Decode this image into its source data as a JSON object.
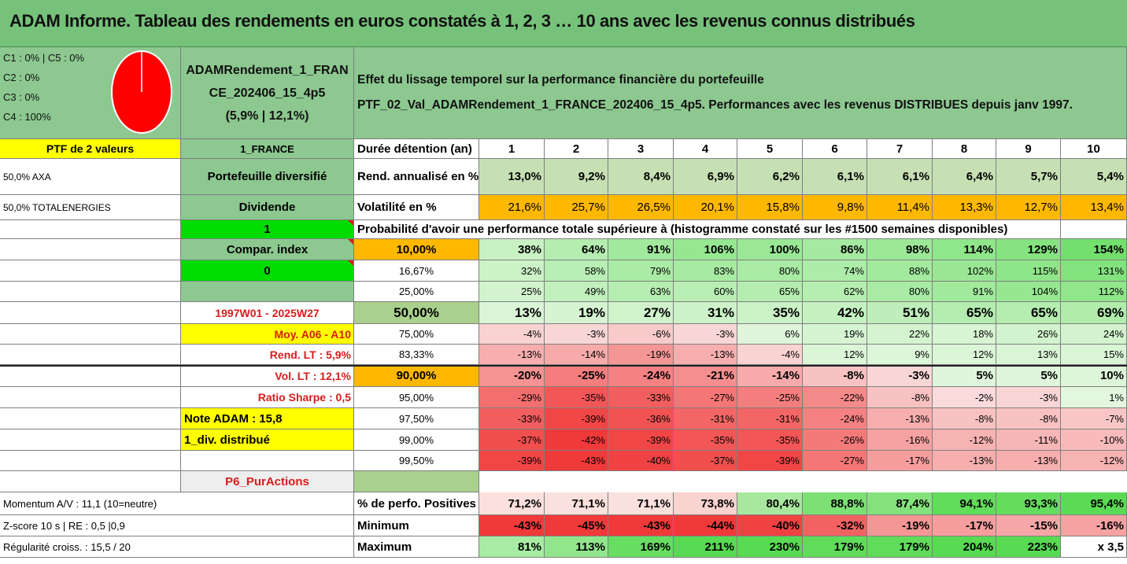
{
  "title": "ADAM Informe. Tableau des rendements en euros constatés à 1, 2, 3 … 10 ans avec les revenus connus distribués",
  "info_box": {
    "lines": [
      "C1 : 0% | C5 : 0%",
      "C2 : 0%",
      "C3 : 0%",
      "C4 : 100%"
    ],
    "pie": {
      "segments": [
        {
          "label": "C4",
          "value": 100,
          "color": "#ff0000"
        }
      ]
    }
  },
  "fund_name": {
    "line1": "ADAMRendement_1_FRAN",
    "line2": "CE_202406_15_4p5",
    "line3": "(5,9% | 12,1%)"
  },
  "description": {
    "line1": "Effet du lissage temporel sur la performance financière du portefeuille",
    "line2": "PTF_02_Val_ADAMRendement_1_FRANCE_202406_15_4p5. Performances avec les revenus DISTRIBUES depuis janv 1997."
  },
  "left": {
    "ptf_label": "PTF de 2 valeurs",
    "holding1": "50,0% AXA",
    "holding2": "50,0% TOTALENERGIES"
  },
  "mid": {
    "r0": "1_FRANCE",
    "r1": "Portefeuille diversifié",
    "r2": "Dividende",
    "r3": "1",
    "r4": "Compar. index",
    "r5": "0",
    "r6": "",
    "r7": "1997W01 - 2025W27",
    "r8": "Moy. A06 - A10",
    "r9": "Rend. LT : 5,9%",
    "r10": "Vol. LT : 12,1%",
    "r11": "Ratio Sharpe : 0,5",
    "r12": "Note ADAM : 15,8",
    "r13": "1_div. distribué",
    "r15": "P6_PurActions"
  },
  "bottom_left": {
    "momentum": "Momentum A/V : 11,1 (10=neutre)",
    "zscore": "Z-score 10 s | RE : 0,5 |0,9",
    "regularite": "Régularité croiss. : 15,5 / 20"
  },
  "durations": {
    "label": "Durée détention (an)",
    "values": [
      "1",
      "2",
      "3",
      "4",
      "5",
      "6",
      "7",
      "8",
      "9",
      "10"
    ]
  },
  "rend": {
    "label": "Rend. annualisé en %",
    "values": [
      "13,0%",
      "9,2%",
      "8,4%",
      "6,9%",
      "6,2%",
      "6,1%",
      "6,1%",
      "6,4%",
      "5,7%",
      "5,4%"
    ]
  },
  "vol": {
    "label": "Volatilité en %",
    "values": [
      "21,6%",
      "25,7%",
      "26,5%",
      "20,1%",
      "15,8%",
      "9,8%",
      "11,4%",
      "13,3%",
      "12,7%",
      "13,4%"
    ]
  },
  "prob_header": "Probabilité d'avoir une performance totale supérieure à (histogramme constaté sur les #1500 semaines disponibles)",
  "quantiles": [
    {
      "p": "10,00%",
      "values": [
        "38%",
        "64%",
        "91%",
        "106%",
        "100%",
        "86%",
        "98%",
        "114%",
        "129%",
        "154%"
      ]
    },
    {
      "p": "16,67%",
      "values": [
        "32%",
        "58%",
        "79%",
        "83%",
        "80%",
        "74%",
        "88%",
        "102%",
        "115%",
        "131%"
      ]
    },
    {
      "p": "25,00%",
      "values": [
        "25%",
        "49%",
        "63%",
        "60%",
        "65%",
        "62%",
        "80%",
        "91%",
        "104%",
        "112%"
      ]
    },
    {
      "p": "50,00%",
      "values": [
        "13%",
        "19%",
        "27%",
        "31%",
        "35%",
        "42%",
        "51%",
        "65%",
        "65%",
        "69%"
      ]
    },
    {
      "p": "75,00%",
      "values": [
        "-4%",
        "-3%",
        "-6%",
        "-3%",
        "6%",
        "19%",
        "22%",
        "18%",
        "26%",
        "24%"
      ]
    },
    {
      "p": "83,33%",
      "values": [
        "-13%",
        "-14%",
        "-19%",
        "-13%",
        "-4%",
        "12%",
        "9%",
        "12%",
        "13%",
        "15%"
      ]
    },
    {
      "p": "90,00%",
      "values": [
        "-20%",
        "-25%",
        "-24%",
        "-21%",
        "-14%",
        "-8%",
        "-3%",
        "5%",
        "5%",
        "10%"
      ]
    },
    {
      "p": "95,00%",
      "values": [
        "-29%",
        "-35%",
        "-33%",
        "-27%",
        "-25%",
        "-22%",
        "-8%",
        "-2%",
        "-3%",
        "1%"
      ]
    },
    {
      "p": "97,50%",
      "values": [
        "-33%",
        "-39%",
        "-36%",
        "-31%",
        "-31%",
        "-24%",
        "-13%",
        "-8%",
        "-8%",
        "-7%"
      ]
    },
    {
      "p": "99,00%",
      "values": [
        "-37%",
        "-42%",
        "-39%",
        "-35%",
        "-35%",
        "-26%",
        "-16%",
        "-12%",
        "-11%",
        "-10%"
      ]
    },
    {
      "p": "99,50%",
      "values": [
        "-39%",
        "-43%",
        "-40%",
        "-37%",
        "-39%",
        "-27%",
        "-17%",
        "-13%",
        "-13%",
        "-12%"
      ]
    }
  ],
  "stats": [
    {
      "label": "% de perfo. Positives",
      "values": [
        "71,2%",
        "71,1%",
        "71,1%",
        "73,8%",
        "80,4%",
        "88,8%",
        "87,4%",
        "94,1%",
        "93,3%",
        "95,4%"
      ]
    },
    {
      "label": "Minimum",
      "values": [
        "-43%",
        "-45%",
        "-43%",
        "-44%",
        "-40%",
        "-32%",
        "-19%",
        "-17%",
        "-15%",
        "-16%"
      ]
    },
    {
      "label": "Maximum",
      "values": [
        "81%",
        "113%",
        "169%",
        "211%",
        "230%",
        "179%",
        "179%",
        "204%",
        "223%",
        "x 3,5"
      ]
    }
  ],
  "colors": {
    "title_bg": "#76c27a",
    "header_green": "#8cc890",
    "yellow": "#ffff00",
    "bright_green": "#00dc00",
    "orange": "#ffb800",
    "olive_green": "#aad08e",
    "pale_green": "#c6e0b4",
    "light_gray": "#eeeeee",
    "pie_red": "#ff0000",
    "label_red": "#d81c1c"
  }
}
